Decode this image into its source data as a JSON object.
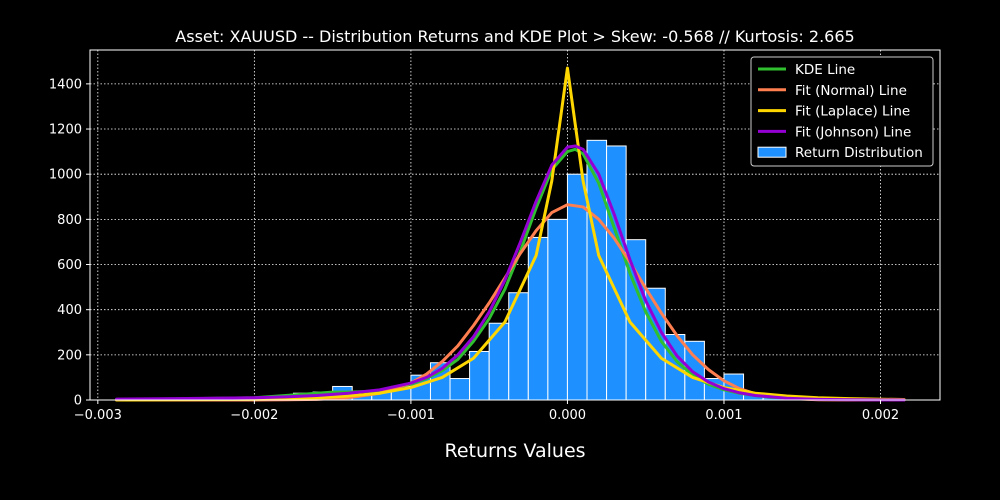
{
  "chart_data": {
    "type": "bar",
    "title": "Asset: XAUUSD -- Distribution Returns and KDE Plot > Skew: -0.568 // Kurtosis: 2.665",
    "xlabel": "Returns Values",
    "ylabel": "",
    "xlim": [
      -0.00305,
      0.00238
    ],
    "ylim": [
      0,
      1550
    ],
    "grid": true,
    "legend_position": "top-right",
    "x_ticks": [
      -0.003,
      -0.002,
      -0.001,
      0.0,
      0.001,
      0.002
    ],
    "x_tick_labels": [
      "−0.003",
      "−0.002",
      "−0.001",
      "0.000",
      "0.001",
      "0.002"
    ],
    "y_ticks": [
      0,
      200,
      400,
      600,
      800,
      1000,
      1200,
      1400
    ],
    "y_tick_labels": [
      "0",
      "200",
      "400",
      "600",
      "800",
      "1000",
      "1200",
      "1400"
    ],
    "histogram": {
      "name": "Return Distribution",
      "color": "#1e90ff",
      "edge_color": "#ffffff",
      "bin_width": 0.000125,
      "bins": [
        {
          "x0": -0.002875,
          "count": 2
        },
        {
          "x0": -0.00275,
          "count": 2
        },
        {
          "x0": -0.002625,
          "count": 3
        },
        {
          "x0": -0.0025,
          "count": 5
        },
        {
          "x0": -0.002375,
          "count": 5
        },
        {
          "x0": -0.00225,
          "count": 6
        },
        {
          "x0": -0.002125,
          "count": 5
        },
        {
          "x0": -0.002,
          "count": 8
        },
        {
          "x0": -0.001875,
          "count": 10
        },
        {
          "x0": -0.00175,
          "count": 30
        },
        {
          "x0": -0.001625,
          "count": 35
        },
        {
          "x0": -0.0015,
          "count": 60
        },
        {
          "x0": -0.001375,
          "count": 25
        },
        {
          "x0": -0.00125,
          "count": 40
        },
        {
          "x0": -0.001125,
          "count": 60
        },
        {
          "x0": -0.001,
          "count": 110
        },
        {
          "x0": -0.000875,
          "count": 165
        },
        {
          "x0": -0.00075,
          "count": 95
        },
        {
          "x0": -0.000625,
          "count": 215
        },
        {
          "x0": -0.0005,
          "count": 340
        },
        {
          "x0": -0.000375,
          "count": 475
        },
        {
          "x0": -0.00025,
          "count": 720
        },
        {
          "x0": -0.000125,
          "count": 800
        },
        {
          "x0": 0.0,
          "count": 1000
        },
        {
          "x0": 0.000125,
          "count": 1150
        },
        {
          "x0": 0.00025,
          "count": 1125
        },
        {
          "x0": 0.000375,
          "count": 710
        },
        {
          "x0": 0.0005,
          "count": 495
        },
        {
          "x0": 0.000625,
          "count": 290
        },
        {
          "x0": 0.00075,
          "count": 260
        },
        {
          "x0": 0.000875,
          "count": 95
        },
        {
          "x0": 0.001,
          "count": 115
        },
        {
          "x0": 0.001125,
          "count": 30
        },
        {
          "x0": 0.00125,
          "count": 10
        },
        {
          "x0": 0.001375,
          "count": 8
        },
        {
          "x0": 0.0015,
          "count": 5
        },
        {
          "x0": 0.001625,
          "count": 3
        },
        {
          "x0": 0.00175,
          "count": 2
        },
        {
          "x0": 0.001875,
          "count": 2
        },
        {
          "x0": 0.002,
          "count": 1
        }
      ]
    },
    "series": [
      {
        "name": "KDE Line",
        "color": "#2fbf2f",
        "x": [
          -0.00288,
          -0.0025,
          -0.002,
          -0.0018,
          -0.0016,
          -0.0015,
          -0.0014,
          -0.0012,
          -0.001,
          -0.0009,
          -0.0008,
          -0.0007,
          -0.0006,
          -0.0005,
          -0.0004,
          -0.0003,
          -0.0002,
          -0.0001,
          0.0,
          5e-05,
          0.0001,
          0.0002,
          0.0003,
          0.0004,
          0.0005,
          0.0006,
          0.0007,
          0.0008,
          0.0009,
          0.001,
          0.0011,
          0.0012,
          0.0013,
          0.0015,
          0.0018,
          0.00215
        ],
        "y": [
          3,
          5,
          10,
          20,
          30,
          35,
          35,
          40,
          70,
          95,
          130,
          180,
          260,
          360,
          490,
          660,
          850,
          1020,
          1100,
          1110,
          1090,
          960,
          760,
          560,
          390,
          260,
          170,
          110,
          70,
          45,
          30,
          20,
          12,
          6,
          3,
          1
        ]
      },
      {
        "name": "Fit (Normal) Line",
        "color": "#ff7f50",
        "x": [
          -0.00288,
          -0.0025,
          -0.002,
          -0.0018,
          -0.0016,
          -0.0014,
          -0.0012,
          -0.001,
          -0.0009,
          -0.0008,
          -0.0007,
          -0.0006,
          -0.0005,
          -0.0004,
          -0.0003,
          -0.0002,
          -0.0001,
          0.0,
          0.0001,
          0.0002,
          0.0003,
          0.0004,
          0.0005,
          0.0006,
          0.0007,
          0.0008,
          0.0009,
          0.001,
          0.0011,
          0.0012,
          0.0014,
          0.0016,
          0.0018,
          0.00215
        ],
        "y": [
          0,
          0,
          0,
          1,
          3,
          10,
          30,
          75,
          115,
          170,
          240,
          330,
          430,
          540,
          650,
          750,
          830,
          865,
          855,
          800,
          715,
          610,
          495,
          385,
          285,
          200,
          135,
          85,
          50,
          28,
          7,
          1,
          0,
          0
        ]
      },
      {
        "name": "Fit (Laplace) Line",
        "color": "#ffd700",
        "x": [
          -0.00288,
          -0.0025,
          -0.002,
          -0.0018,
          -0.0016,
          -0.0014,
          -0.0012,
          -0.001,
          -0.0008,
          -0.0006,
          -0.0004,
          -0.0002,
          -0.0001,
          0.0,
          0.0001,
          0.0002,
          0.0004,
          0.0006,
          0.0008,
          0.001,
          0.0012,
          0.0014,
          0.0016,
          0.0018,
          0.00215
        ],
        "y": [
          0,
          1,
          3,
          6,
          10,
          18,
          30,
          55,
          100,
          185,
          345,
          640,
          970,
          1470,
          970,
          640,
          345,
          185,
          100,
          55,
          30,
          18,
          10,
          6,
          2
        ]
      },
      {
        "name": "Fit (Johnson) Line",
        "color": "#9400d3",
        "x": [
          -0.00288,
          -0.0025,
          -0.002,
          -0.0018,
          -0.0016,
          -0.0014,
          -0.0012,
          -0.001,
          -0.0009,
          -0.0008,
          -0.0007,
          -0.0006,
          -0.0005,
          -0.0004,
          -0.0003,
          -0.0002,
          -0.0001,
          0.0,
          5e-05,
          0.0001,
          0.0002,
          0.0003,
          0.0004,
          0.0005,
          0.0006,
          0.0007,
          0.0008,
          0.0009,
          0.001,
          0.0011,
          0.0012,
          0.0014,
          0.0016,
          0.0018,
          0.00215
        ],
        "y": [
          4,
          6,
          10,
          14,
          20,
          30,
          45,
          75,
          100,
          140,
          200,
          280,
          390,
          530,
          700,
          880,
          1040,
          1120,
          1125,
          1110,
          1000,
          820,
          620,
          440,
          300,
          195,
          125,
          80,
          50,
          32,
          20,
          8,
          3,
          1,
          0
        ]
      }
    ]
  }
}
